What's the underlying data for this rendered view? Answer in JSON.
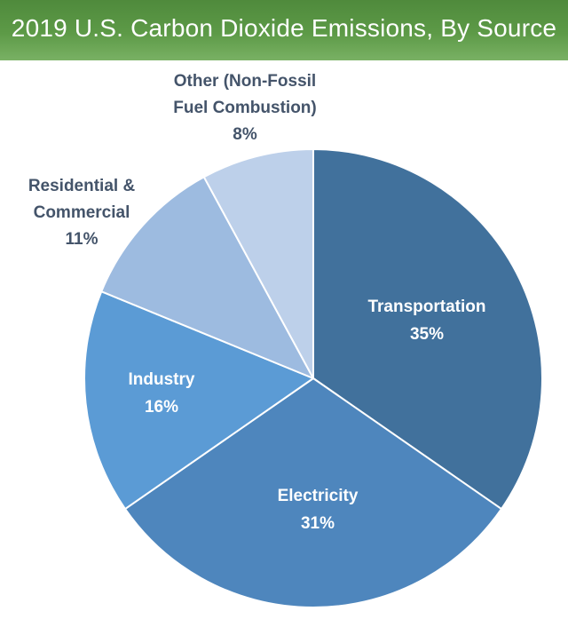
{
  "chart_data": {
    "type": "pie",
    "title": "2019 U.S. Carbon Dioxide Emissions, By Source",
    "slices": [
      {
        "label_lines": [
          "Transportation"
        ],
        "value": 35,
        "value_label": "35%",
        "color": "#41719c",
        "label_color": "#ffffff"
      },
      {
        "label_lines": [
          "Electricity"
        ],
        "value": 31,
        "value_label": "31%",
        "color": "#4e86bd",
        "label_color": "#ffffff"
      },
      {
        "label_lines": [
          "Industry"
        ],
        "value": 16,
        "value_label": "16%",
        "color": "#5b9bd5",
        "label_color": "#ffffff"
      },
      {
        "label_lines": [
          "Residential &",
          "Commercial"
        ],
        "value": 11,
        "value_label": "11%",
        "color": "#9dbbe0",
        "label_color": "#44546a"
      },
      {
        "label_lines": [
          "Other (Non-Fossil",
          "Fuel Combustion)"
        ],
        "value": 8,
        "value_label": "8%",
        "color": "#bdd0ea",
        "label_color": "#44546a"
      }
    ]
  }
}
